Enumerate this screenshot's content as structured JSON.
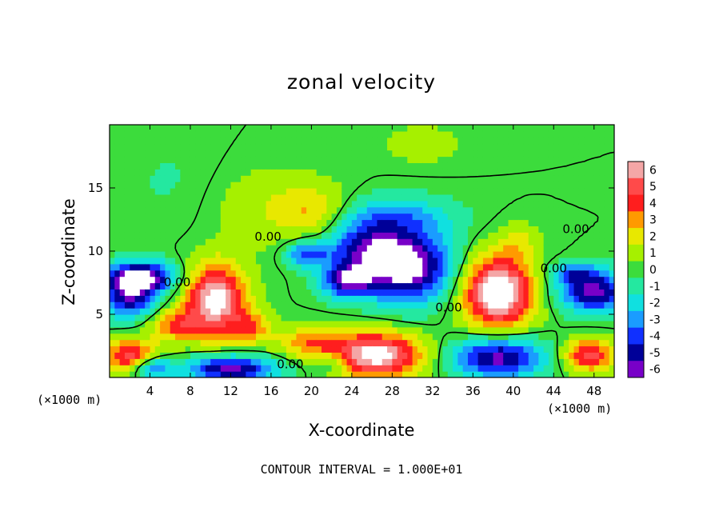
{
  "chart_data": {
    "type": "heatmap",
    "title": "zonal velocity",
    "xlabel": "X-coordinate",
    "ylabel": "Z-coordinate",
    "x_unit": "(×1000 m)",
    "y_unit": "(×1000 m)",
    "footer": "CONTOUR INTERVAL = 1.000E+01",
    "xlim": [
      0,
      50
    ],
    "ylim": [
      0,
      20
    ],
    "x_ticks": [
      4,
      8,
      12,
      16,
      20,
      24,
      28,
      32,
      36,
      40,
      44,
      48
    ],
    "y_ticks": [
      5,
      10,
      15
    ],
    "colorbar": {
      "levels": [
        6,
        5,
        4,
        3,
        2,
        1,
        0,
        -1,
        -2,
        -3,
        -4,
        -5,
        -6
      ],
      "colors": [
        "#f4a6a6",
        "#ff4a4a",
        "#ff1e1e",
        "#ff9a00",
        "#e8e800",
        "#a6f000",
        "#3cdc3c",
        "#24e8a0",
        "#10e0e0",
        "#1a9cff",
        "#1030ff",
        "#000098",
        "#7800c8"
      ]
    },
    "contour_labels": [
      {
        "x": 15.7,
        "z": 11.1,
        "text": "0.00"
      },
      {
        "x": 46.2,
        "z": 11.7,
        "text": "0.00"
      },
      {
        "x": 44.0,
        "z": 8.6,
        "text": "0.00"
      },
      {
        "x": 6.7,
        "z": 7.5,
        "text": "0.00"
      },
      {
        "x": 33.6,
        "z": 5.5,
        "text": "0.00"
      },
      {
        "x": 17.9,
        "z": 1.0,
        "text": "0.00"
      }
    ],
    "blobs": [
      {
        "x": 16,
        "z": 13.5,
        "rx": 6,
        "rz": 3.2,
        "v": 1.3
      },
      {
        "x": 20.5,
        "z": 13.0,
        "rx": 3.5,
        "rz": 2.0,
        "v": 2.2
      },
      {
        "x": 31,
        "z": 18.5,
        "rx": 4,
        "rz": 1.5,
        "v": 1.2
      },
      {
        "x": 40.5,
        "z": 10.8,
        "rx": 2.0,
        "rz": 1.5,
        "v": 1.5
      },
      {
        "x": 6,
        "z": 15.5,
        "rx": 5,
        "rz": 4,
        "v": -0.6
      },
      {
        "x": 28,
        "z": 12.8,
        "rx": 6,
        "rz": 1.6,
        "v": -2.6
      },
      {
        "x": 25,
        "z": 10.2,
        "rx": 4,
        "rz": 2.2,
        "v": -4.0
      },
      {
        "x": 29.5,
        "z": 8.8,
        "rx": 4.5,
        "rz": 2.8,
        "v": -7.0
      },
      {
        "x": 23.5,
        "z": 7.6,
        "rx": 2.5,
        "rz": 1.3,
        "v": -5.0
      },
      {
        "x": 19.5,
        "z": 9.8,
        "rx": 2.0,
        "rz": 1.0,
        "v": -4.0
      },
      {
        "x": 3,
        "z": 8.0,
        "rx": 3.5,
        "rz": 1.2,
        "v": -7.0
      },
      {
        "x": 2,
        "z": 6.2,
        "rx": 2.8,
        "rz": 1.5,
        "v": -5.0
      },
      {
        "x": 48,
        "z": 6.8,
        "rx": 3.5,
        "rz": 1.6,
        "v": -6.0
      },
      {
        "x": 46,
        "z": 8.3,
        "rx": 2.5,
        "rz": 0.8,
        "v": -3.0
      },
      {
        "x": 38.5,
        "z": 1.6,
        "rx": 4.5,
        "rz": 1.6,
        "v": -6.0
      },
      {
        "x": 12,
        "z": 0.7,
        "rx": 4.5,
        "rz": 1.0,
        "v": -6.0
      },
      {
        "x": 4.2,
        "z": 0.8,
        "rx": 1.8,
        "rz": 0.8,
        "v": -4.0
      },
      {
        "x": 10.5,
        "z": 6.2,
        "rx": 3.0,
        "rz": 2.8,
        "v": 7.0
      },
      {
        "x": 6.5,
        "z": 4.2,
        "rx": 2.5,
        "rz": 1.3,
        "v": 3.5
      },
      {
        "x": 14,
        "z": 4.0,
        "rx": 2.0,
        "rz": 1.3,
        "v": 3.0
      },
      {
        "x": 38.5,
        "z": 6.8,
        "rx": 3.5,
        "rz": 2.8,
        "v": 8.0
      },
      {
        "x": 26.5,
        "z": 1.8,
        "rx": 4.5,
        "rz": 1.8,
        "v": 7.0
      },
      {
        "x": 20,
        "z": 2.8,
        "rx": 3.5,
        "rz": 1.3,
        "v": 3.0
      },
      {
        "x": 2,
        "z": 1.8,
        "rx": 2.5,
        "rz": 1.3,
        "v": 5.0
      },
      {
        "x": 47.5,
        "z": 1.8,
        "rx": 2.5,
        "rz": 1.3,
        "v": 5.0
      },
      {
        "x": 22,
        "z": 1.2,
        "rx": 1.5,
        "rz": 0.8,
        "v": -2.0
      }
    ]
  }
}
